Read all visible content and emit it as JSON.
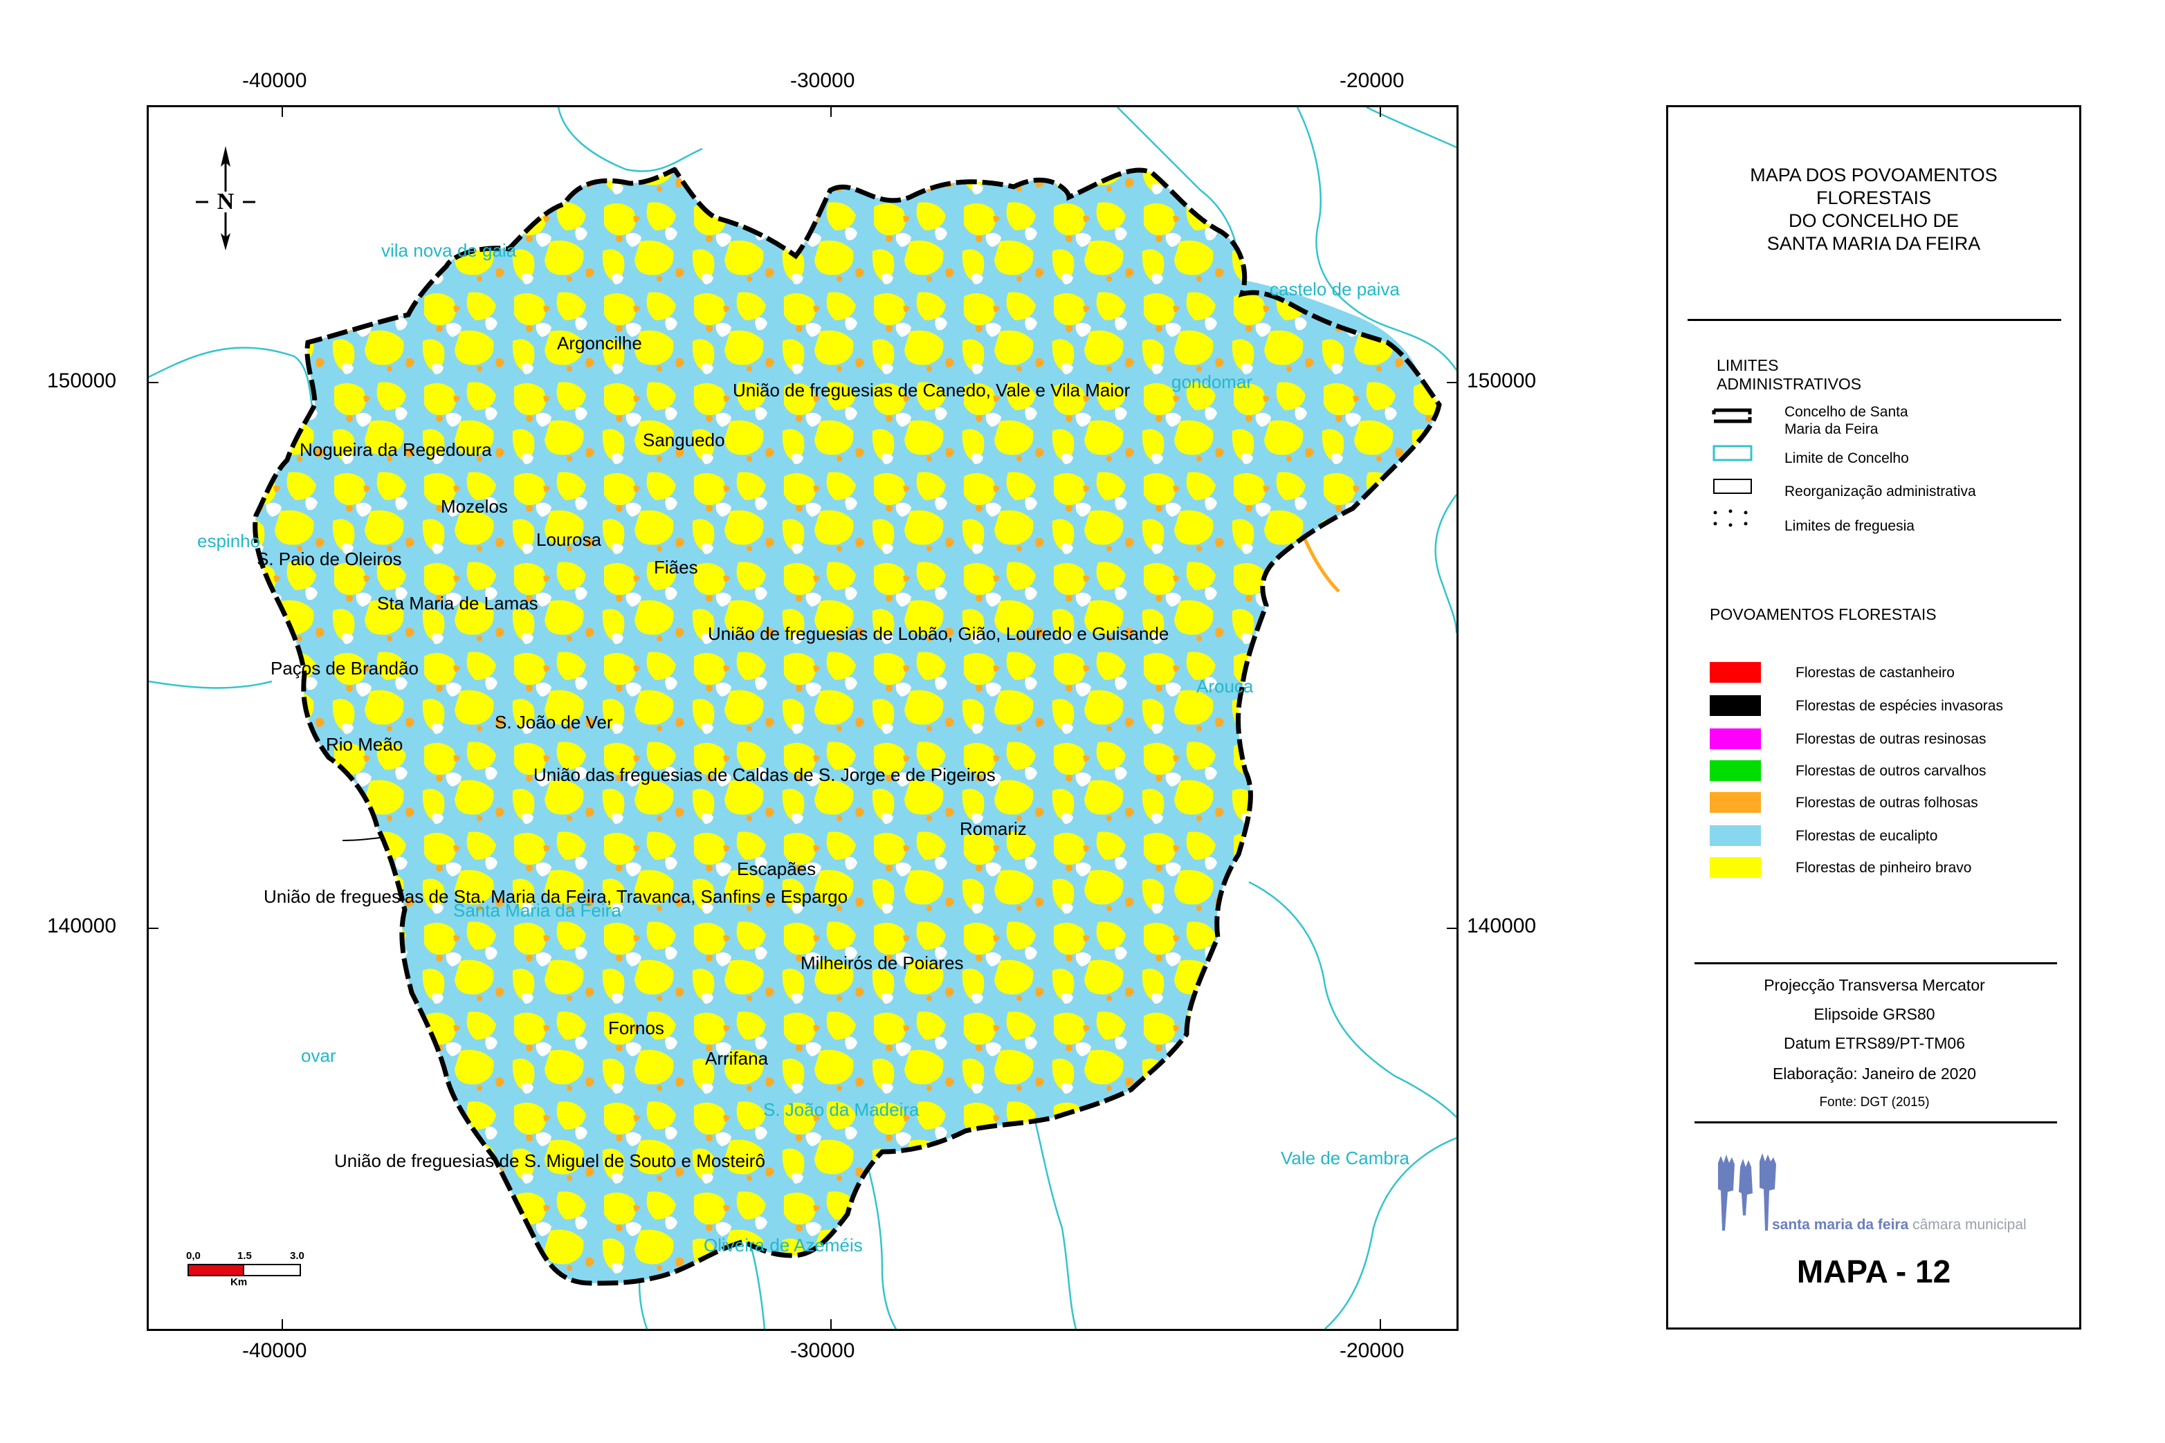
{
  "axes": {
    "x_ticks": [
      "-40000",
      "-30000",
      "-20000"
    ],
    "y_ticks": [
      "150000",
      "140000"
    ]
  },
  "north_arrow": {
    "label": "N"
  },
  "scalebar": {
    "labels": [
      "0,0",
      "1.5",
      "3.0"
    ],
    "unit": "Km"
  },
  "municipalities": {
    "vila_nova_de_gaia": "vila nova de gaia",
    "castelo_de_paiva": "castelo de paiva",
    "gondomar": "gondomar",
    "espinho": "espinho",
    "arouca": "Arouca",
    "ovar": "ovar",
    "sao_joao_da_madeira": "S. João da Madeira",
    "vale_de_cambra": "Vale de Cambra",
    "oliveira_de_azemeis": "Oliveira de Azeméis",
    "santa_maria_da_feira": "Santa Maria da Feira"
  },
  "parishes": {
    "argoncilhe": "Argoncilhe",
    "canedo": "União de freguesias de Canedo, Vale e Vila Maior",
    "nogueira": "Nogueira da Regedoura",
    "sanguedo": "Sanguedo",
    "mozelos": "Mozelos",
    "lourosa": "Lourosa",
    "paio_oleiros": "S. Paio de Oleiros",
    "fiaes": "Fiães",
    "sta_maria_lamas": "Sta Maria de Lamas",
    "lobao": "União de freguesias de Lobão, Gião, Louredo e Guisande",
    "pacos_brandao": "Paços de Brandão",
    "joao_ver": "S. João de Ver",
    "rio_meao": "Rio Meão",
    "caldas": "União das freguesias de Caldas de S. Jorge e de Pigeiros",
    "romariz": "Romariz",
    "escapaes": "Escapães",
    "feira_union": "União de freguesias de Sta. Maria da Feira, Travanca, Sanfins e Espargo",
    "milheiros": "Milheirós de Poiares",
    "fornos": "Fornos",
    "arrifana": "Arrifana",
    "souto": "União de freguesias de S. Miguel de Souto e Mosteirô"
  },
  "panel": {
    "title": [
      "MAPA DOS POVOAMENTOS",
      "FLORESTAIS",
      "DO CONCELHO DE",
      "SANTA MARIA DA FEIRA"
    ],
    "admin_heading": [
      "LIMITES",
      "ADMINISTRATIVOS"
    ],
    "admin_items": [
      [
        "Concelho de Santa",
        "Maria da Feira"
      ],
      "Limite de Concelho",
      "Reorganização administrativa",
      "Limites de freguesia"
    ],
    "forest_heading": "POVOAMENTOS FLORESTAIS",
    "forest_items": [
      {
        "label": "Florestas de castanheiro",
        "color": "#ff0000"
      },
      {
        "label": "Florestas de espécies invasoras",
        "color": "#000000"
      },
      {
        "label": "Florestas de outras resinosas",
        "color": "#ff00ff"
      },
      {
        "label": "Florestas de outros carvalhos",
        "color": "#00dd00"
      },
      {
        "label": "Florestas de outras folhosas",
        "color": "#ffaa22"
      },
      {
        "label": "Florestas de eucalipto",
        "color": "#87d7ef"
      },
      {
        "label": "Florestas de pinheiro bravo",
        "color": "#ffff00"
      }
    ],
    "projection": [
      "Projecção Transversa Mercator",
      "Elipsoide GRS80",
      "Datum ETRS89/PT-TM06",
      "Elaboração: Janeiro de 2020",
      "Fonte: DGT (2015)"
    ],
    "logo": {
      "brand": "santa maria da feira",
      "sub": "câmara municipal"
    },
    "map_number": "MAPA - 12"
  },
  "colors": {
    "eucalipto": "#87d7ef",
    "pinheiro": "#ffff00",
    "folhosas": "#ffaa22",
    "carvalhos": "#00dd00",
    "resinosas": "#ff00ff",
    "castanheiro": "#ff0000",
    "concelho_limit": "#33c4cc",
    "label_cyan": "#22b8c8",
    "logo_blue": "#6a7fbf"
  }
}
